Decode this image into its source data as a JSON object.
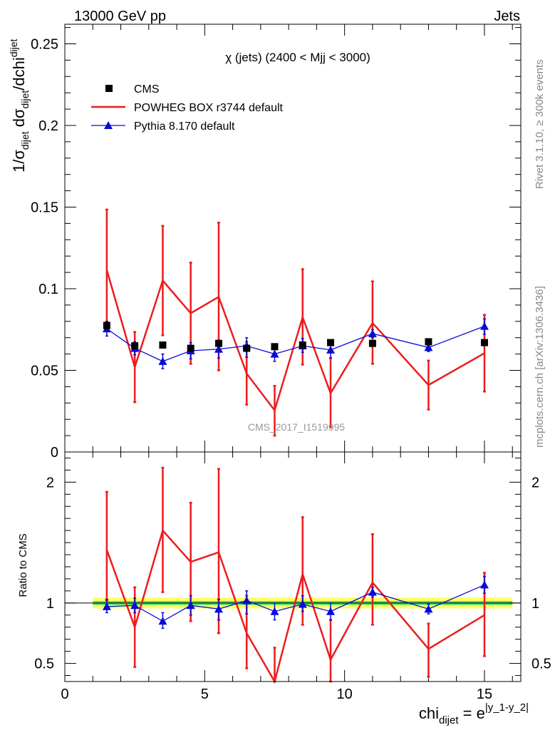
{
  "header": {
    "left": "13000 GeV pp",
    "right": "Jets"
  },
  "side_labels": {
    "rivet": "Rivet 3.1.10, ≥ 300k events",
    "mcplots": "mcplots.cern.ch [arXiv:1306.3436]"
  },
  "watermark": "CMS_2017_I1519995",
  "colors": {
    "cms": "#000000",
    "powheg": "#ee1c1c",
    "pythia": "#0a0ad8",
    "band_inner": "#33dd66",
    "band_outer": "#ffff66"
  },
  "chart_data": [
    {
      "type": "line",
      "title": "χ (jets) (2400 < Mjj < 3000)",
      "ylabel": {
        "main": "1/σ",
        "sub1": "dijet",
        "mid": " dσ",
        "sub2": "dijet",
        "tail": "/dchi",
        "sub3": "dijet"
      },
      "xlim": [
        0,
        16.3
      ],
      "ylim": [
        0,
        0.262
      ],
      "yticks": [
        0,
        0.05,
        0.1,
        0.15,
        0.2,
        0.25
      ],
      "ytick_labels": [
        "0",
        "0.05",
        "0.1",
        "0.15",
        "0.2",
        "0.25"
      ],
      "legend_position": "top-left",
      "legend": [
        "CMS",
        "POWHEG BOX r3744 default",
        "Pythia 8.170 default"
      ],
      "x": [
        1.5,
        2.5,
        3.5,
        4.5,
        5.5,
        6.5,
        7.5,
        8.5,
        9.5,
        11,
        13,
        15
      ],
      "series": [
        {
          "name": "CMS",
          "style": "marker-square",
          "values": [
            0.0775,
            0.065,
            0.0655,
            0.0635,
            0.0665,
            0.0635,
            0.0645,
            0.0655,
            0.067,
            0.0665,
            0.0675,
            0.067
          ]
        },
        {
          "name": "POWHEG BOX r3744 default",
          "style": "line",
          "values": [
            0.1115,
            0.052,
            0.105,
            0.085,
            0.095,
            0.048,
            0.0255,
            0.0825,
            0.036,
            0.079,
            0.041,
            0.0605
          ],
          "err_low": [
            0.0795,
            0.0305,
            0.0715,
            0.054,
            0.05,
            0.029,
            0.01,
            0.0535,
            0.015,
            0.054,
            0.026,
            0.037
          ],
          "err_high": [
            0.1485,
            0.0735,
            0.1385,
            0.116,
            0.1405,
            0.0675,
            0.0405,
            0.112,
            0.0575,
            0.1045,
            0.056,
            0.084
          ]
        },
        {
          "name": "Pythia 8.170 default",
          "style": "line-triangle",
          "values": [
            0.0755,
            0.0635,
            0.0555,
            0.062,
            0.063,
            0.065,
            0.06,
            0.065,
            0.0625,
            0.0725,
            0.064,
            0.077
          ],
          "err_low": [
            0.071,
            0.0595,
            0.051,
            0.057,
            0.0575,
            0.058,
            0.0555,
            0.061,
            0.0575,
            0.07,
            0.0615,
            0.072
          ],
          "err_high": [
            0.08,
            0.0675,
            0.06,
            0.067,
            0.0685,
            0.07,
            0.0645,
            0.0695,
            0.067,
            0.075,
            0.0665,
            0.0815
          ]
        }
      ]
    },
    {
      "type": "line",
      "ylabel": "Ratio to CMS",
      "xlabel": {
        "main": "chi",
        "sub": "dijet",
        "eq": " = e",
        "sup": "|y_1-y_2|"
      },
      "xlim": [
        0,
        16.3
      ],
      "ylim": [
        0.35,
        2.25
      ],
      "yticks": [
        0.5,
        1,
        2
      ],
      "ytick_labels": [
        "0.5",
        "1",
        "2"
      ],
      "xticks": [
        0,
        5,
        10,
        15
      ],
      "xtick_labels": [
        "0",
        "5",
        "10",
        "15"
      ],
      "reference_line": 1,
      "band": {
        "x_start": 1,
        "x_end": 16,
        "inner_low": 0.985,
        "inner_high": 1.015,
        "outer_low": 0.955,
        "outer_high": 1.045
      },
      "x": [
        1.5,
        2.5,
        3.5,
        4.5,
        5.5,
        6.5,
        7.5,
        8.5,
        9.5,
        11,
        13,
        15
      ],
      "series": [
        {
          "name": "POWHEG BOX r3744 default",
          "style": "line",
          "values": [
            1.44,
            0.8,
            1.6,
            1.34,
            1.42,
            0.75,
            0.33,
            1.24,
            0.53,
            1.17,
            0.62,
            0.9
          ],
          "err_low": [
            1.02,
            0.47,
            1.09,
            0.85,
            0.75,
            0.46,
            0.16,
            0.82,
            0.22,
            0.82,
            0.39,
            0.56
          ],
          "err_high": [
            1.92,
            1.13,
            2.12,
            1.83,
            2.11,
            1.06,
            0.63,
            1.71,
            0.86,
            1.57,
            0.83,
            1.25
          ]
        },
        {
          "name": "Pythia 8.170 default",
          "style": "line-triangle",
          "values": [
            0.97,
            0.98,
            0.85,
            0.98,
            0.95,
            1.02,
            0.93,
            0.99,
            0.93,
            1.09,
            0.95,
            1.15
          ],
          "err_low": [
            0.92,
            0.92,
            0.79,
            0.9,
            0.86,
            0.91,
            0.86,
            0.93,
            0.86,
            1.05,
            0.91,
            1.08
          ],
          "err_high": [
            1.03,
            1.04,
            0.92,
            1.06,
            1.03,
            1.1,
            1.0,
            1.06,
            1.0,
            1.13,
            0.99,
            1.22
          ]
        }
      ]
    }
  ]
}
